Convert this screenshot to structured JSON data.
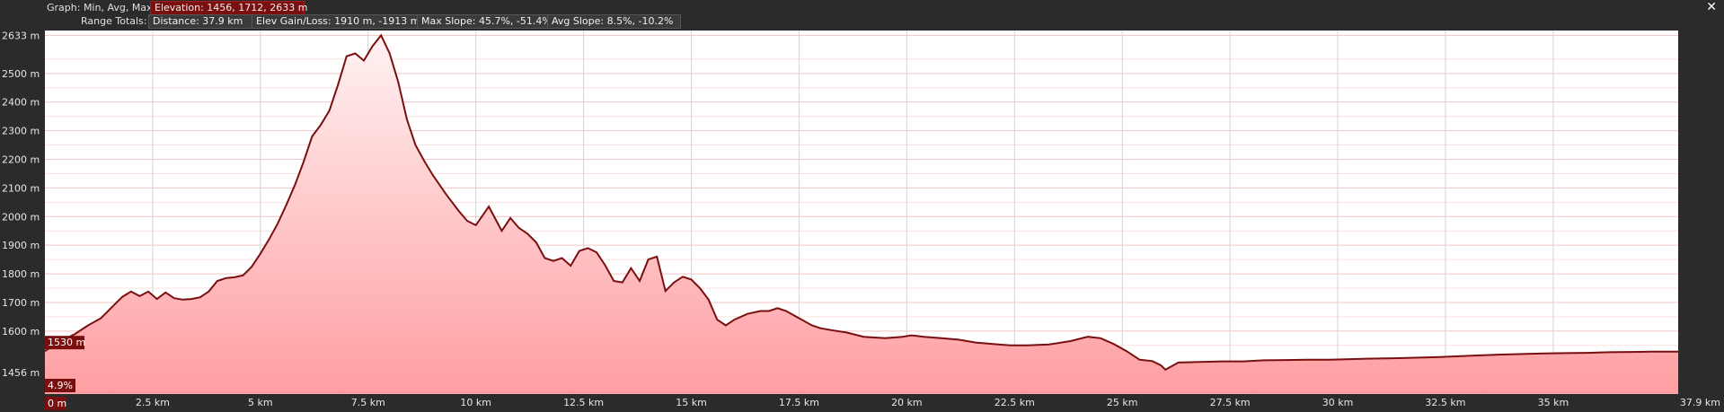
{
  "header": {
    "graph_label": "Graph: Min, Avg, Max",
    "elevation_pill": "Elevation: 1456, 1712, 2633 m",
    "range_label": "Range Totals:",
    "distance_pill": "Distance: 37.9 km",
    "gain_pill": "Elev Gain/Loss: 1910 m, -1913 m",
    "maxslope_pill": "Max Slope: 45.7%, -51.4%",
    "avgslope_pill": "Avg Slope: 8.5%, -10.2%",
    "close_icon": "close-icon"
  },
  "colors": {
    "background": "#2b2b2b",
    "plot_bg": "#ffffff",
    "line": "#7a0f0f",
    "fill_top": "#fff0f0",
    "fill_bottom": "#ff9ea2",
    "marker_bg": "#7a0f0f"
  },
  "chart_data": {
    "type": "area",
    "xlabel": "",
    "ylabel": "",
    "xlim": [
      0,
      37.9
    ],
    "ylim": [
      1380,
      2650
    ],
    "x_ticks": [
      {
        "value": 2.5,
        "label": "2.5 km"
      },
      {
        "value": 5,
        "label": "5 km"
      },
      {
        "value": 7.5,
        "label": "7.5 km"
      },
      {
        "value": 10,
        "label": "10 km"
      },
      {
        "value": 12.5,
        "label": "12.5 km"
      },
      {
        "value": 15,
        "label": "15 km"
      },
      {
        "value": 17.5,
        "label": "17.5 km"
      },
      {
        "value": 20,
        "label": "20 km"
      },
      {
        "value": 22.5,
        "label": "22.5 km"
      },
      {
        "value": 25,
        "label": "25 km"
      },
      {
        "value": 27.5,
        "label": "27.5 km"
      },
      {
        "value": 30,
        "label": "30 km"
      },
      {
        "value": 32.5,
        "label": "32.5 km"
      },
      {
        "value": 35,
        "label": "35 km"
      }
    ],
    "x_start_label": "0 m",
    "x_end_label": "37.9 km",
    "y_ticks": [
      {
        "value": 2633,
        "label": "2633 m"
      },
      {
        "value": 2500,
        "label": "2500 m"
      },
      {
        "value": 2400,
        "label": "2400 m"
      },
      {
        "value": 2300,
        "label": "2300 m"
      },
      {
        "value": 2200,
        "label": "2200 m"
      },
      {
        "value": 2100,
        "label": "2100 m"
      },
      {
        "value": 2000,
        "label": "2000 m"
      },
      {
        "value": 1900,
        "label": "1900 m"
      },
      {
        "value": 1800,
        "label": "1800 m"
      },
      {
        "value": 1700,
        "label": "1700 m"
      },
      {
        "value": 1600,
        "label": "1600 m"
      },
      {
        "value": 1456,
        "label": "1456 m"
      }
    ],
    "minor_y_ticks": [
      2550,
      2450,
      2350,
      2250,
      2150,
      2050,
      1950,
      1850,
      1750,
      1650,
      1550
    ],
    "cursor": {
      "elevation": 1530,
      "elevation_label": "1530 m",
      "slope_label": "4.9%"
    },
    "series": [
      {
        "x": [
          0,
          0.3,
          0.7,
          1.0,
          1.3,
          1.6,
          1.8,
          2.0,
          2.2,
          2.4,
          2.6,
          2.8,
          3.0,
          3.2,
          3.4,
          3.6,
          3.8,
          4.0,
          4.2,
          4.4,
          4.6,
          4.8,
          5.0,
          5.2,
          5.4,
          5.6,
          5.8,
          6.0,
          6.2,
          6.4,
          6.6,
          6.8,
          7.0,
          7.2,
          7.4,
          7.6,
          7.8,
          8.0,
          8.2,
          8.4,
          8.6,
          8.8,
          9.0,
          9.3,
          9.6,
          9.8,
          10.0,
          10.3,
          10.6,
          10.8,
          11.0,
          11.2,
          11.4,
          11.6,
          11.8,
          12.0,
          12.2,
          12.4,
          12.6,
          12.8,
          13.0,
          13.2,
          13.4,
          13.6,
          13.8,
          14.0,
          14.2,
          14.4,
          14.6,
          14.8,
          15.0,
          15.2,
          15.4,
          15.6,
          15.8,
          16.0,
          16.3,
          16.6,
          16.8,
          17.0,
          17.2,
          17.5,
          17.8,
          18.0,
          18.3,
          18.6,
          19.0,
          19.5,
          19.9,
          20.1,
          20.4,
          20.8,
          21.2,
          21.6,
          22.0,
          22.4,
          22.8,
          23.3,
          23.8,
          24.2,
          24.5,
          24.8,
          25.1,
          25.4,
          25.7,
          25.9,
          26.0,
          26.3,
          26.8,
          27.3,
          27.8,
          28.3,
          28.8,
          29.3,
          29.8,
          30.3,
          30.8,
          31.3,
          31.8,
          32.3,
          32.8,
          33.3,
          33.8,
          34.3,
          34.8,
          35.3,
          35.8,
          36.3,
          36.8,
          37.3,
          37.9
        ],
        "y": [
          1530,
          1560,
          1590,
          1620,
          1645,
          1690,
          1720,
          1738,
          1722,
          1738,
          1712,
          1735,
          1715,
          1710,
          1712,
          1718,
          1738,
          1775,
          1785,
          1788,
          1795,
          1825,
          1870,
          1920,
          1975,
          2040,
          2110,
          2190,
          2280,
          2320,
          2370,
          2460,
          2560,
          2570,
          2545,
          2595,
          2633,
          2570,
          2470,
          2340,
          2250,
          2195,
          2145,
          2080,
          2020,
          1985,
          1970,
          2035,
          1950,
          1995,
          1960,
          1940,
          1910,
          1855,
          1845,
          1855,
          1828,
          1880,
          1890,
          1875,
          1830,
          1775,
          1770,
          1820,
          1775,
          1850,
          1860,
          1740,
          1770,
          1790,
          1780,
          1750,
          1710,
          1640,
          1620,
          1640,
          1660,
          1670,
          1670,
          1680,
          1670,
          1645,
          1620,
          1610,
          1602,
          1595,
          1580,
          1575,
          1580,
          1585,
          1580,
          1575,
          1570,
          1560,
          1555,
          1550,
          1550,
          1553,
          1565,
          1580,
          1575,
          1555,
          1530,
          1500,
          1495,
          1480,
          1465,
          1490,
          1492,
          1494,
          1494,
          1498,
          1499,
          1500,
          1500,
          1502,
          1504,
          1505,
          1507,
          1509,
          1512,
          1515,
          1518,
          1520,
          1522,
          1523,
          1524,
          1526,
          1527,
          1528,
          1528
        ]
      }
    ]
  }
}
